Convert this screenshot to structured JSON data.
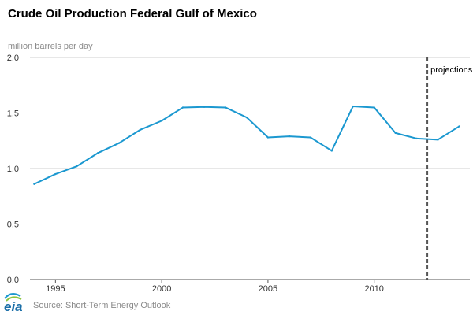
{
  "chart_data": {
    "type": "line",
    "title": "Crude Oil Production Federal Gulf of Mexico",
    "ylabel": "million barrels per day",
    "xlabel": "",
    "xlim": [
      1993.8,
      2014.5
    ],
    "ylim": [
      0,
      2.0
    ],
    "x_ticks": [
      1995,
      2000,
      2005,
      2010
    ],
    "y_ticks": [
      "0.0",
      "0.5",
      "1.0",
      "1.5",
      "2.0"
    ],
    "grid": true,
    "legend": "none",
    "line_color": "#1b98d0",
    "series": [
      {
        "x": [
          1994,
          1995,
          1996,
          1997,
          1998,
          1999,
          2000,
          2001,
          2002,
          2003,
          2004,
          2005,
          2006,
          2007,
          2008,
          2009,
          2010,
          2011,
          2012,
          2013,
          2014
        ],
        "values": [
          0.86,
          0.95,
          1.02,
          1.14,
          1.23,
          1.35,
          1.43,
          1.55,
          1.555,
          1.55,
          1.46,
          1.28,
          1.29,
          1.28,
          1.16,
          1.56,
          1.55,
          1.32,
          1.27,
          1.26,
          1.38
        ]
      }
    ],
    "annotations": [
      {
        "text": "projections",
        "x": 2012.5
      }
    ],
    "source": "Source: Short-Term Energy Outlook",
    "logo_text": "eia"
  }
}
